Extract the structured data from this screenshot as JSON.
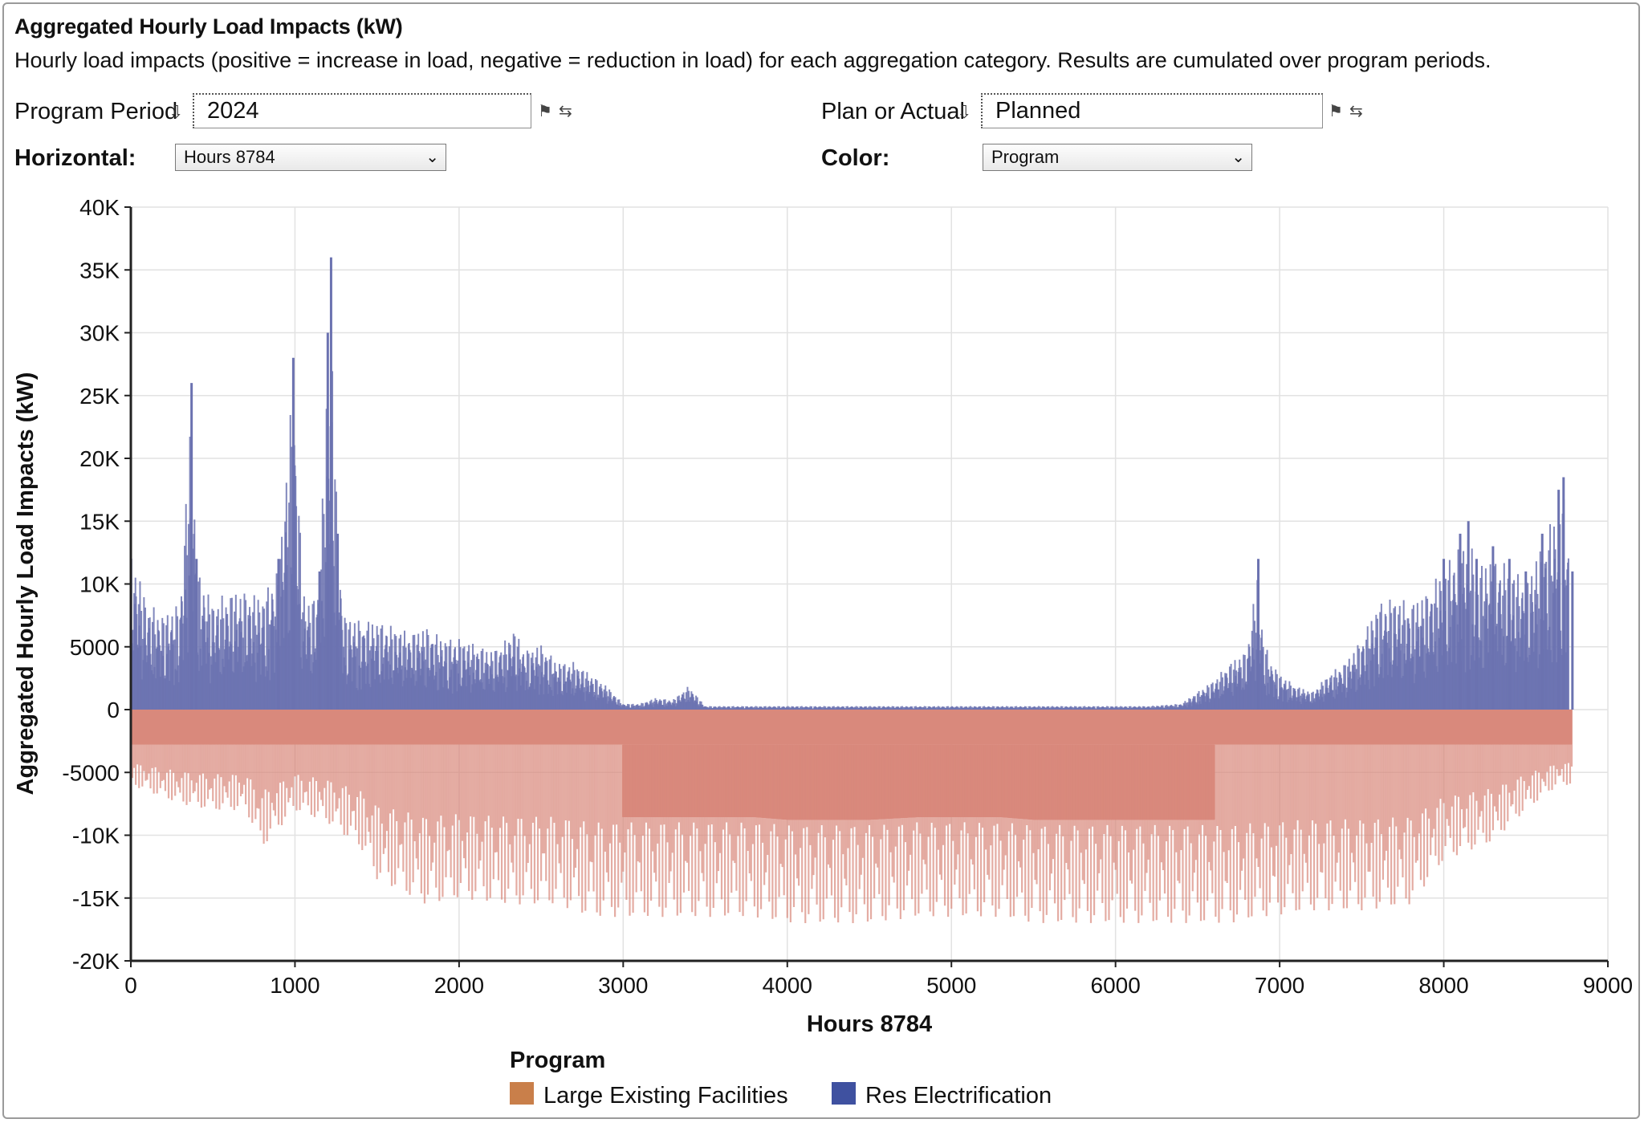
{
  "header": {
    "title": "Aggregated Hourly Load Impacts (kW)",
    "subtitle": "Hourly load impacts (positive = increase in load, negative = reduction in load) for each aggregation category. Results are cumulated over program periods."
  },
  "controls": {
    "program_period_label": "Program Period",
    "program_period_value": "2024",
    "plan_label": "Plan or Actual",
    "plan_value": "Planned",
    "horizontal_label": "Horizontal:",
    "horizontal_value": "Hours 8784",
    "color_label": "Color:",
    "color_value": "Program",
    "icons": [
      "sort-down-icon",
      "flag-icon",
      "swap-icon",
      "chevron-down-icon"
    ]
  },
  "chart_data": {
    "type": "area",
    "xlabel": "Hours 8784",
    "ylabel": "Aggregated Hourly Load Impacts (kW)",
    "xlim": [
      0,
      9000
    ],
    "ylim": [
      -20000,
      40000
    ],
    "x_ticks": [
      0,
      1000,
      2000,
      3000,
      4000,
      5000,
      6000,
      7000,
      8000,
      9000
    ],
    "x_tick_labels": [
      "0",
      "1000",
      "2000",
      "3000",
      "4000",
      "5000",
      "6000",
      "7000",
      "8000",
      "9000"
    ],
    "y_ticks": [
      40000,
      35000,
      30000,
      25000,
      20000,
      15000,
      10000,
      5000,
      0,
      -5000,
      -10000,
      -15000,
      -20000
    ],
    "y_tick_labels": [
      "40K",
      "35K",
      "30K",
      "25K",
      "20K",
      "15K",
      "10K",
      "5000",
      "0",
      "-5000",
      "-10K",
      "-15K",
      "-20K"
    ],
    "grid": true,
    "legend": {
      "title": "Program",
      "placement": "bottom-center"
    },
    "series": [
      {
        "name": "Large Existing Facilities",
        "color": "#d9897c",
        "legend_color": "#c97f4a",
        "baseline_value": -2800,
        "envelope_x": [
          0,
          300,
          500,
          700,
          800,
          1000,
          1200,
          1400,
          1500,
          1800,
          2000,
          2300,
          2600,
          2800,
          3000,
          3300,
          3500,
          3800,
          4000,
          4300,
          4500,
          4800,
          5000,
          5300,
          5500,
          5800,
          6000,
          6300,
          6500,
          6700,
          6900,
          7200,
          7500,
          7800,
          8000,
          8300,
          8500,
          8700,
          8784
        ],
        "envelope_min": [
          -6000,
          -7500,
          -8000,
          -8000,
          -11000,
          -8000,
          -9000,
          -11000,
          -13500,
          -15500,
          -15000,
          -15500,
          -15500,
          -16500,
          -16500,
          -16500,
          -16500,
          -16500,
          -17000,
          -17000,
          -17000,
          -16500,
          -16500,
          -16500,
          -17000,
          -17000,
          -17000,
          -17000,
          -17000,
          -17000,
          -16500,
          -16000,
          -16000,
          -15500,
          -12000,
          -10500,
          -8000,
          -6000,
          -6000
        ]
      },
      {
        "name": "Res Electrification",
        "color": "#6b72b0",
        "legend_color": "#3f51a0",
        "peaks_x": [
          0,
          100,
          200,
          300,
          370,
          400,
          500,
          600,
          700,
          800,
          900,
          990,
          1050,
          1100,
          1150,
          1200,
          1220,
          1260,
          1300,
          1400,
          1500,
          1600,
          1700,
          1800,
          1900,
          2000,
          2100,
          2200,
          2300,
          2330,
          2400,
          2500,
          2600,
          2700,
          2800,
          2900,
          3000,
          3100,
          3200,
          3300,
          3400,
          3500,
          6000,
          6200,
          6400,
          6500,
          6600,
          6700,
          6800,
          6870,
          6900,
          6950,
          7000,
          7100,
          7200,
          7300,
          7400,
          7500,
          7600,
          7700,
          7800,
          7900,
          8000,
          8100,
          8150,
          8200,
          8300,
          8400,
          8500,
          8600,
          8700,
          8730,
          8784
        ],
        "peaks_y": [
          13500,
          9000,
          8000,
          9000,
          26000,
          12000,
          9000,
          10000,
          10000,
          9500,
          12000,
          28000,
          10000,
          9000,
          11000,
          30000,
          36000,
          14000,
          8000,
          7500,
          7500,
          7000,
          6500,
          7000,
          6000,
          6000,
          5500,
          5000,
          6000,
          7000,
          5000,
          5500,
          4000,
          4000,
          3000,
          2000,
          500,
          500,
          1000,
          800,
          2000,
          300,
          300,
          300,
          500,
          1500,
          2500,
          4000,
          5000,
          12000,
          6000,
          4000,
          3000,
          2000,
          1500,
          3000,
          4000,
          6000,
          9000,
          9500,
          9000,
          10000,
          12000,
          14000,
          15000,
          12000,
          13000,
          12000,
          11000,
          14000,
          17500,
          18500,
          11000
        ]
      }
    ]
  }
}
